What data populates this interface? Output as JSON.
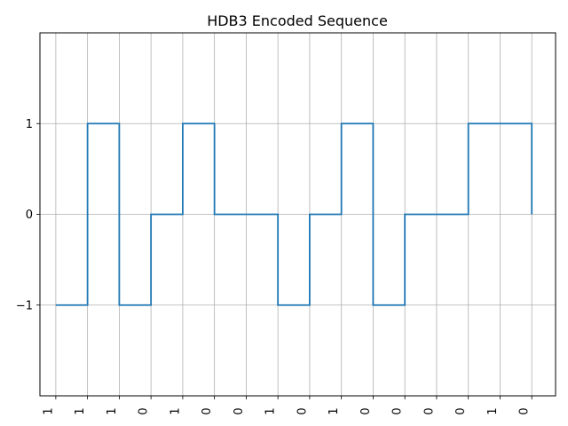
{
  "chart_data": {
    "type": "line",
    "step": "post",
    "title": "HDB3 Encoded Sequence",
    "xlabel": "",
    "ylabel": "",
    "categories": [
      "1",
      "1",
      "1",
      "0",
      "1",
      "0",
      "0",
      "1",
      "0",
      "1",
      "0",
      "0",
      "0",
      "0",
      "1",
      "0"
    ],
    "x": [
      0,
      1,
      2,
      3,
      4,
      5,
      6,
      7,
      8,
      9,
      10,
      11,
      12,
      13,
      14,
      15
    ],
    "values": [
      -1,
      1,
      -1,
      0,
      1,
      0,
      0,
      -1,
      0,
      1,
      -1,
      0,
      0,
      1,
      1,
      0
    ],
    "xlim": [
      -0.5,
      15.75
    ],
    "ylim": [
      -2,
      2
    ],
    "yticks": [
      -1,
      0,
      1
    ],
    "ytick_labels": [
      "−1",
      "0",
      "1"
    ],
    "xtick_rotation": "vertical",
    "grid": true,
    "legend": "none",
    "colors": {
      "line": "#1f77b4",
      "grid": "#b0b0b0",
      "axes": "#000000"
    }
  }
}
